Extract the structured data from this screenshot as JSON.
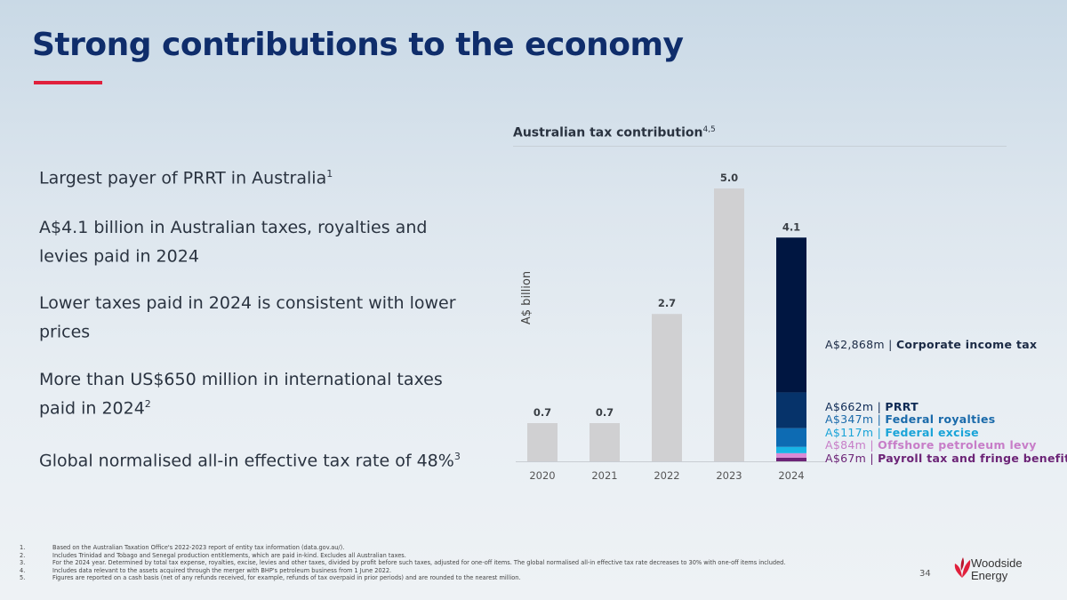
{
  "title": "Strong contributions to the economy",
  "bullets": [
    {
      "text": "Largest payer of PRRT in Australia",
      "sup": "1"
    },
    {
      "text": "A$4.1 billion in Australian taxes, royalties and levies paid in 2024",
      "sup": ""
    },
    {
      "text": "Lower taxes paid in 2024 is consistent with lower prices",
      "sup": ""
    },
    {
      "text": "More than US$650 million in international taxes paid in 2024",
      "sup": "2"
    },
    {
      "text": "Global normalised all-in effective tax rate of 48%",
      "sup": "3"
    }
  ],
  "chart_data": {
    "type": "bar",
    "title": "Australian tax contribution",
    "title_sup": "4,5",
    "ylabel": "A$ billion",
    "xlabel": "",
    "categories": [
      "2020",
      "2021",
      "2022",
      "2023",
      "2024"
    ],
    "values": [
      0.7,
      0.7,
      2.7,
      5.0,
      4.1
    ],
    "data_labels": [
      "0.7",
      "0.7",
      "2.7",
      "5.0",
      "4.1"
    ],
    "ylim": [
      0,
      5.0
    ],
    "grid": false,
    "bar_color": "#d0d0d2",
    "stack_2024": [
      {
        "amount": "A$2,868m",
        "name": "Corporate income tax",
        "value": 2868,
        "color": "#001641",
        "text_color": "#1b2a45"
      },
      {
        "amount": "A$662m",
        "name": "PRRT",
        "value": 662,
        "color": "#06336a",
        "text_color": "#0e2a55"
      },
      {
        "amount": "A$347m",
        "name": "Federal royalties",
        "value": 347,
        "color": "#0d6bb3",
        "text_color": "#1a6aaa"
      },
      {
        "amount": "A$117m",
        "name": "Federal excise",
        "value": 117,
        "color": "#18b4e6",
        "text_color": "#1aa4d8"
      },
      {
        "amount": "A$84m",
        "name": "Offshore petroleum levy",
        "value": 84,
        "color": "#d98bd6",
        "text_color": "#c77dc8"
      },
      {
        "amount": "A$67m",
        "name": "Payroll tax and fringe benefits tax",
        "value": 67,
        "color": "#6c2477",
        "text_color": "#6c2477"
      }
    ]
  },
  "footnotes": [
    {
      "n": "1.",
      "text": "Based on the Australian Taxation Office's 2022-2023 report of entity tax information (data.gov.au/)."
    },
    {
      "n": "2.",
      "text": "Includes Trinidad and Tobago and Senegal production entitlements, which are paid in-kind. Excludes all Australian taxes."
    },
    {
      "n": "3.",
      "text": "For the 2024 year. Determined by total tax expense, royalties, excise, levies and other taxes, divided by profit before such taxes, adjusted for one-off items. The global normalised all-in effective tax rate decreases to 30% with one-off items included."
    },
    {
      "n": "4.",
      "text": "Includes data relevant to the assets acquired through the merger with BHP's petroleum business from 1 June 2022."
    },
    {
      "n": "5.",
      "text": "Figures are reported on a cash basis (net of any refunds received, for example, refunds of tax overpaid in prior periods) and are rounded to the nearest million."
    }
  ],
  "page_number": "34",
  "logo": {
    "line1": "Woodside",
    "line2": "Energy",
    "color": "#e0203c"
  }
}
